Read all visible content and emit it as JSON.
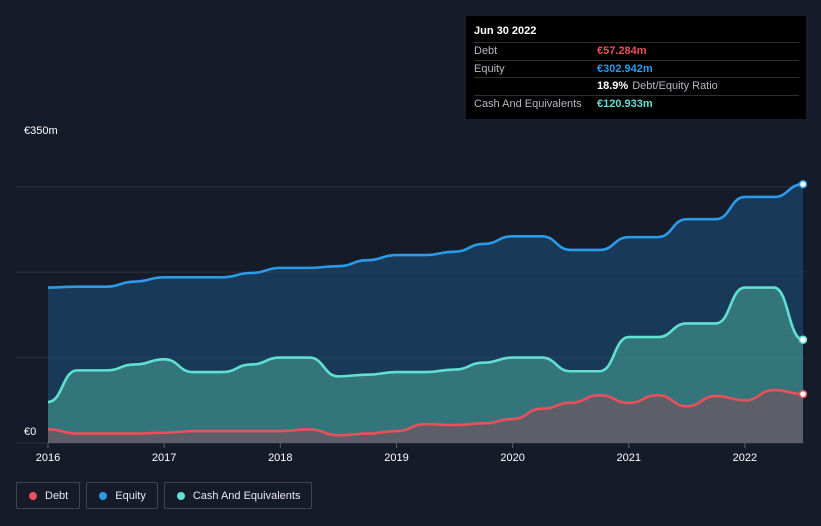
{
  "tooltip": {
    "date": "Jun 30 2022",
    "rows": [
      {
        "label": "Debt",
        "value": "€57.284m",
        "color": "#e9505b"
      },
      {
        "label": "Equity",
        "value": "€302.942m",
        "color": "#2b9be8"
      },
      {
        "label": "",
        "value": "18.9%",
        "sub": "Debt/Equity Ratio",
        "color": "#ffffff"
      },
      {
        "label": "Cash And Equivalents",
        "value": "€120.933m",
        "color": "#5fe0d2"
      }
    ]
  },
  "legend": [
    {
      "label": "Debt",
      "color": "#e9505b"
    },
    {
      "label": "Equity",
      "color": "#2b9be8"
    },
    {
      "label": "Cash And Equivalents",
      "color": "#5fe0d2"
    }
  ],
  "chart_data": {
    "type": "area",
    "y_axis_labels": [
      "€350m",
      "€0"
    ],
    "ylim": [
      0,
      350
    ],
    "xlim": [
      2016,
      2022.5
    ],
    "x_ticks": [
      2016,
      2017,
      2018,
      2019,
      2020,
      2021,
      2022
    ],
    "x_tick_labels": [
      "2016",
      "2017",
      "2018",
      "2019",
      "2020",
      "2021",
      "2022"
    ],
    "grid": true,
    "series": [
      {
        "name": "Equity",
        "color": "#2b9be8",
        "points": [
          [
            2016,
            182
          ],
          [
            2016.25,
            183
          ],
          [
            2016.5,
            183
          ],
          [
            2016.75,
            189
          ],
          [
            2017,
            194
          ],
          [
            2017.25,
            194
          ],
          [
            2017.5,
            194
          ],
          [
            2017.75,
            199
          ],
          [
            2018,
            205
          ],
          [
            2018.25,
            205
          ],
          [
            2018.5,
            207
          ],
          [
            2018.75,
            214
          ],
          [
            2019,
            220
          ],
          [
            2019.25,
            220
          ],
          [
            2019.5,
            224
          ],
          [
            2019.75,
            233
          ],
          [
            2020,
            242
          ],
          [
            2020.25,
            242
          ],
          [
            2020.5,
            226
          ],
          [
            2020.75,
            226
          ],
          [
            2021,
            241
          ],
          [
            2021.25,
            241
          ],
          [
            2021.5,
            262
          ],
          [
            2021.75,
            262
          ],
          [
            2022,
            288
          ],
          [
            2022.25,
            288
          ],
          [
            2022.5,
            302.942
          ]
        ]
      },
      {
        "name": "Cash And Equivalents",
        "color": "#5fe0d2",
        "points": [
          [
            2016,
            48
          ],
          [
            2016.25,
            85
          ],
          [
            2016.5,
            85
          ],
          [
            2016.75,
            92
          ],
          [
            2017,
            98
          ],
          [
            2017.25,
            83
          ],
          [
            2017.5,
            83
          ],
          [
            2017.75,
            92
          ],
          [
            2018,
            100
          ],
          [
            2018.25,
            100
          ],
          [
            2018.5,
            78
          ],
          [
            2018.75,
            80
          ],
          [
            2019,
            83
          ],
          [
            2019.25,
            83
          ],
          [
            2019.5,
            86
          ],
          [
            2019.75,
            94
          ],
          [
            2020,
            100
          ],
          [
            2020.25,
            100
          ],
          [
            2020.5,
            84
          ],
          [
            2020.75,
            84
          ],
          [
            2021,
            124
          ],
          [
            2021.25,
            124
          ],
          [
            2021.5,
            140
          ],
          [
            2021.75,
            140
          ],
          [
            2022,
            182
          ],
          [
            2022.25,
            182
          ],
          [
            2022.5,
            120.933
          ]
        ]
      },
      {
        "name": "Debt",
        "color": "#e9505b",
        "points": [
          [
            2016,
            16
          ],
          [
            2016.25,
            11
          ],
          [
            2016.5,
            11
          ],
          [
            2016.75,
            11
          ],
          [
            2017,
            12
          ],
          [
            2017.25,
            14
          ],
          [
            2017.5,
            14
          ],
          [
            2017.75,
            14
          ],
          [
            2018,
            14
          ],
          [
            2018.25,
            16
          ],
          [
            2018.5,
            9
          ],
          [
            2018.75,
            11
          ],
          [
            2019,
            14
          ],
          [
            2019.25,
            22
          ],
          [
            2019.5,
            21
          ],
          [
            2019.75,
            23
          ],
          [
            2020,
            28
          ],
          [
            2020.25,
            40
          ],
          [
            2020.5,
            47
          ],
          [
            2020.75,
            56
          ],
          [
            2021,
            47
          ],
          [
            2021.25,
            56
          ],
          [
            2021.5,
            43
          ],
          [
            2021.75,
            55
          ],
          [
            2022,
            50
          ],
          [
            2022.25,
            62
          ],
          [
            2022.5,
            57.284
          ]
        ]
      }
    ]
  }
}
